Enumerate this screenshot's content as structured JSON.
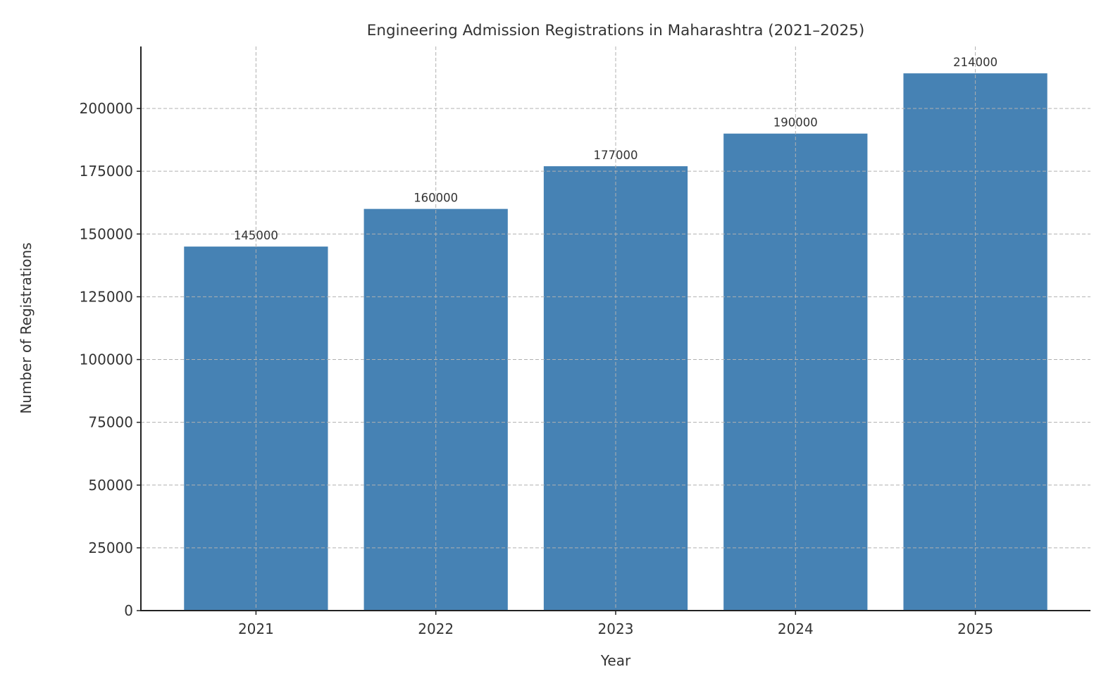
{
  "chart_data": {
    "type": "bar",
    "title": "Engineering Admission Registrations in Maharashtra (2021–2025)",
    "xlabel": "Year",
    "ylabel": "Number of Registrations",
    "categories": [
      "2021",
      "2022",
      "2023",
      "2024",
      "2025"
    ],
    "values": [
      145000,
      160000,
      177000,
      190000,
      214000
    ],
    "data_labels": [
      "145000",
      "160000",
      "177000",
      "190000",
      "214000"
    ],
    "ylim": [
      0,
      224700
    ],
    "yticks": [
      0,
      25000,
      50000,
      75000,
      100000,
      125000,
      150000,
      175000,
      200000
    ],
    "ytick_labels": [
      "0",
      "25000",
      "50000",
      "75000",
      "100000",
      "125000",
      "150000",
      "175000",
      "200000"
    ],
    "grid": true,
    "grid_style": "dashed",
    "bar_color": "#4682b4"
  }
}
